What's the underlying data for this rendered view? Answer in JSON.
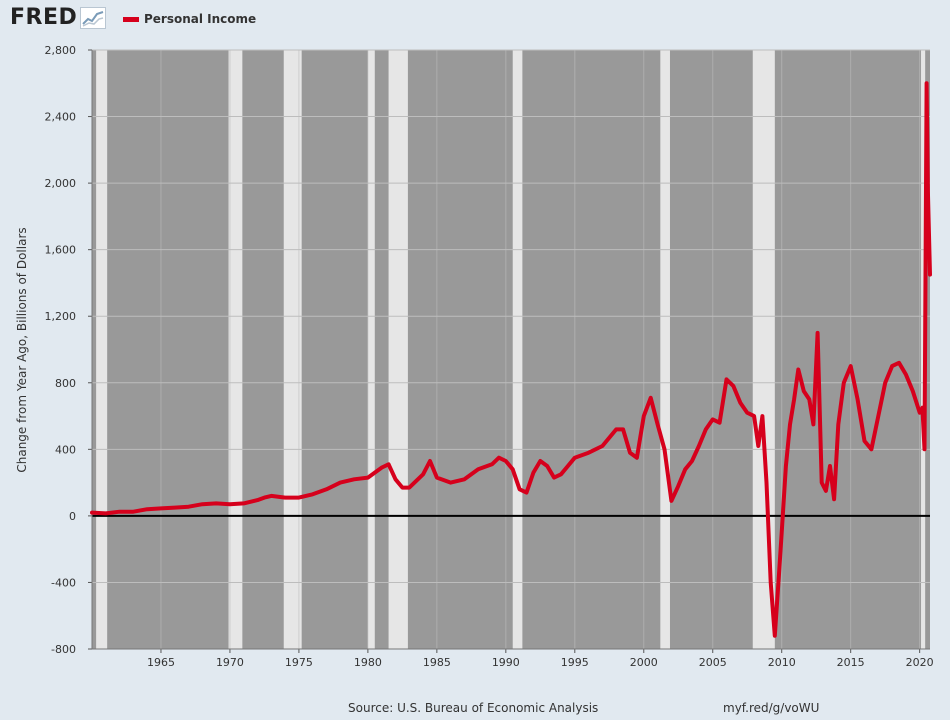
{
  "header": {
    "logo_text": "FRED",
    "legend_label": "Personal Income"
  },
  "footer": {
    "source": "Source: U.S. Bureau of Economic Analysis",
    "url": "myf.red/g/voWU"
  },
  "colors": {
    "series": "#d6001c",
    "plot_background": "#999999",
    "recession_band": "#e6e6e6",
    "page_background": "#e1e9f0"
  },
  "chart_data": {
    "type": "line",
    "title": "",
    "xlabel": "",
    "ylabel": "Change from Year Ago, Billions of Dollars",
    "xlim": [
      1960.0,
      2020.75
    ],
    "ylim": [
      -800,
      2800
    ],
    "grid": true,
    "legend_position": "top-left",
    "x_ticks": [
      1965,
      1970,
      1975,
      1980,
      1985,
      1990,
      1995,
      2000,
      2005,
      2010,
      2015,
      2020
    ],
    "y_ticks": [
      -800,
      -400,
      0,
      400,
      800,
      1200,
      1600,
      2000,
      2400,
      2800
    ],
    "y_tick_labels": [
      "-800",
      "-400",
      "0",
      "400",
      "800",
      "1,200",
      "1,600",
      "2,000",
      "2,400",
      "2,800"
    ],
    "recessions": [
      [
        1960.3,
        1961.1
      ],
      [
        1969.9,
        1970.9
      ],
      [
        1973.9,
        1975.2
      ],
      [
        1980.0,
        1980.5
      ],
      [
        1981.5,
        1982.9
      ],
      [
        1990.5,
        1991.2
      ],
      [
        2001.2,
        2001.9
      ],
      [
        2007.9,
        2009.5
      ],
      [
        2020.1,
        2020.4
      ]
    ],
    "series": [
      {
        "name": "Personal Income",
        "x": [
          1960.0,
          1961.0,
          1962.0,
          1963.0,
          1964.0,
          1965.0,
          1966.0,
          1967.0,
          1968.0,
          1969.0,
          1970.0,
          1971.0,
          1972.0,
          1972.5,
          1973.0,
          1974.0,
          1975.0,
          1976.0,
          1977.0,
          1978.0,
          1979.0,
          1980.0,
          1981.0,
          1981.5,
          1982.0,
          1982.5,
          1983.0,
          1984.0,
          1984.5,
          1985.0,
          1986.0,
          1987.0,
          1988.0,
          1989.0,
          1989.5,
          1990.0,
          1990.5,
          1991.0,
          1991.5,
          1992.0,
          1992.5,
          1993.0,
          1993.5,
          1994.0,
          1994.5,
          1995.0,
          1996.0,
          1997.0,
          1998.0,
          1998.5,
          1999.0,
          1999.5,
          2000.0,
          2000.5,
          2001.0,
          2001.5,
          2002.0,
          2002.5,
          2003.0,
          2003.5,
          2004.0,
          2004.5,
          2005.0,
          2005.5,
          2006.0,
          2006.5,
          2007.0,
          2007.5,
          2008.0,
          2008.3,
          2008.6,
          2008.9,
          2009.2,
          2009.5,
          2009.8,
          2010.0,
          2010.3,
          2010.6,
          2010.9,
          2011.2,
          2011.6,
          2012.0,
          2012.3,
          2012.6,
          2012.9,
          2013.2,
          2013.5,
          2013.8,
          2014.1,
          2014.5,
          2015.0,
          2015.5,
          2016.0,
          2016.5,
          2017.0,
          2017.5,
          2018.0,
          2018.5,
          2019.0,
          2019.5,
          2020.0,
          2020.2,
          2020.35,
          2020.5,
          2020.6,
          2020.75
        ],
        "values": [
          20,
          15,
          25,
          25,
          40,
          45,
          50,
          55,
          70,
          75,
          70,
          75,
          95,
          110,
          120,
          110,
          110,
          130,
          160,
          200,
          220,
          230,
          290,
          310,
          220,
          170,
          170,
          250,
          330,
          230,
          200,
          220,
          280,
          310,
          350,
          330,
          280,
          160,
          140,
          260,
          330,
          300,
          230,
          250,
          300,
          350,
          380,
          420,
          520,
          520,
          380,
          350,
          600,
          710,
          550,
          400,
          90,
          180,
          280,
          330,
          420,
          520,
          580,
          560,
          820,
          780,
          680,
          620,
          600,
          420,
          600,
          200,
          -400,
          -720,
          -350,
          -100,
          300,
          550,
          700,
          880,
          750,
          700,
          550,
          1100,
          200,
          150,
          300,
          100,
          550,
          800,
          900,
          700,
          450,
          400,
          600,
          800,
          900,
          920,
          850,
          750,
          620,
          650,
          400,
          2600,
          1950,
          1450
        ]
      }
    ]
  }
}
